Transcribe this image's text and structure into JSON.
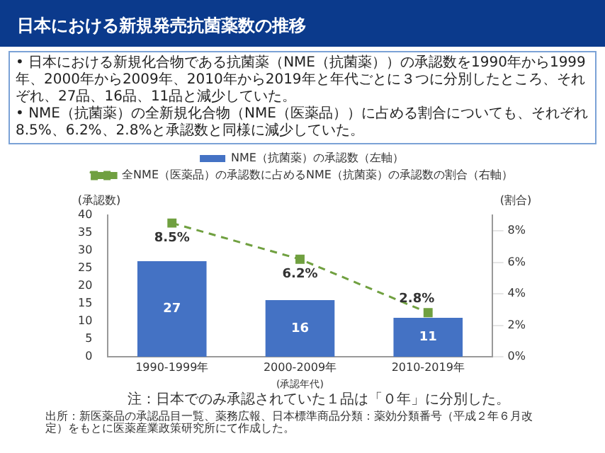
{
  "chart_data": {
    "type": "bar",
    "title": "日本における新規発売抗菌薬数の推移",
    "subtitle": "• 日本における新規化合物である抗菌薬（NME（抗菌薬））の承認数を1990年から1999年、2000年から2009年、2010年から2019年と年代ごとに３つに分別したところ、それぞれ、27品、16品、11品と減少していた。\n• NME（抗菌薬）の全新規化合物（NME（医薬品））に占める割合についても、それぞれ8.5%、6.2%、2.8%と承認数と同様に減少していた。",
    "categories": [
      "1990-1999年",
      "2000-2009年",
      "2010-2019年"
    ],
    "series": [
      {
        "name": "NME（抗菌薬）の承認数（左軸）",
        "color": "#4472c4",
        "values": [
          27,
          16,
          11
        ],
        "value_labels": [
          "27",
          "16",
          "11"
        ]
      },
      {
        "name": "全NME（医薬品）の承認数に占めるNME（抗菌薬）の承認数の割合（右軸）",
        "type": "line",
        "axis": "y2",
        "color": "#70a040",
        "values": [
          8.5,
          6.2,
          2.8
        ],
        "value_labels": [
          "8.5%",
          "6.2%",
          "2.8%"
        ],
        "marker": "square",
        "line_style": "dashed"
      }
    ],
    "xlabel": "(承認年代)",
    "ylabel": "(承認数)",
    "y2label": "(割合)",
    "ylim": [
      0,
      40
    ],
    "yticks": [
      0,
      5,
      10,
      15,
      20,
      25,
      30,
      35,
      40
    ],
    "y2lim": [
      0,
      9
    ],
    "y2ticks": [
      {
        "value": 0,
        "label": "0%"
      },
      {
        "value": 2,
        "label": "2%"
      },
      {
        "value": 4,
        "label": "4%"
      },
      {
        "value": 6,
        "label": "6%"
      },
      {
        "value": 8,
        "label": "8%"
      }
    ],
    "legend": "top",
    "grid": false,
    "annotations": [
      "注：日本でのみ承認されていた１品は「０年」に分別した。",
      "出所：新医薬品の承認品目一覧、薬務広報、日本標準商品分類：薬効分類番号（平成２年６月改定）をもとに医薬産業政策研究所にて作成した。"
    ]
  }
}
